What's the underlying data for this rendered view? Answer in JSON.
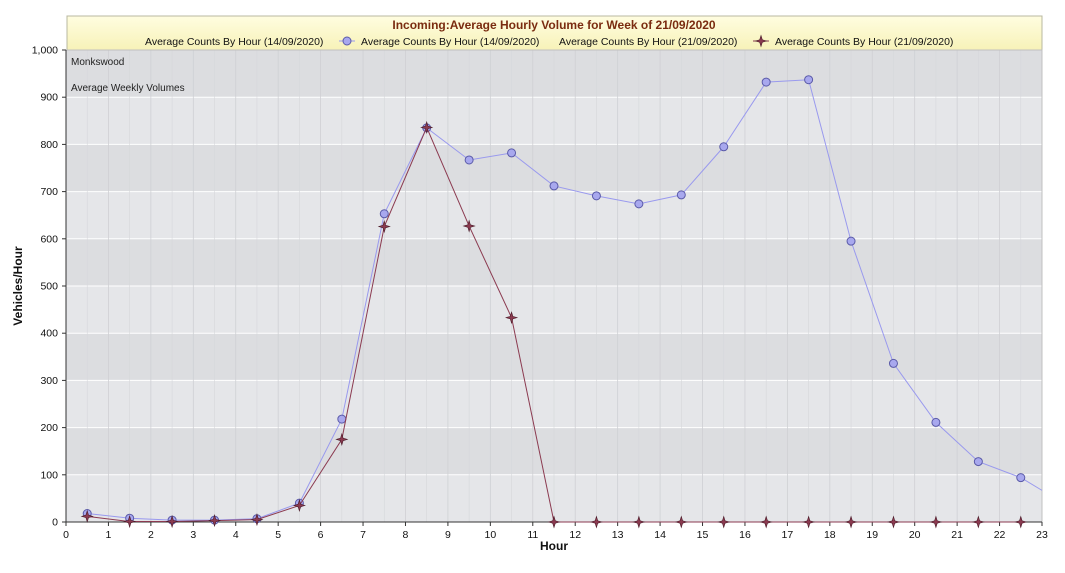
{
  "chart_data": {
    "type": "line",
    "title": "Incoming:Average Hourly Volume for Week of 21/09/2020",
    "xlabel": "Hour",
    "ylabel": "Vehicles/Hour",
    "xlim": [
      0,
      23
    ],
    "ylim": [
      0,
      1000
    ],
    "x_ticks": [
      0,
      1,
      2,
      3,
      4,
      5,
      6,
      7,
      8,
      9,
      10,
      11,
      12,
      13,
      14,
      15,
      16,
      17,
      18,
      19,
      20,
      21,
      22,
      23
    ],
    "y_ticks": [
      0,
      100,
      200,
      300,
      400,
      500,
      600,
      700,
      800,
      900,
      1000
    ],
    "y_tick_labels": [
      "0",
      "100",
      "200",
      "300",
      "400",
      "500",
      "600",
      "700",
      "800",
      "900",
      "1,000"
    ],
    "grid": true,
    "legend_placement": "top",
    "annotations": [
      "Monkswood",
      "Average Weekly Volumes"
    ],
    "legend": [
      {
        "text": "Average Counts By Hour (14/09/2020)",
        "marker": "none"
      },
      {
        "text": "Average Counts By Hour (14/09/2020)",
        "marker": "circle"
      },
      {
        "text": "Average Counts By Hour (21/09/2020)",
        "marker": "none"
      },
      {
        "text": "Average Counts By Hour (21/09/2020)",
        "marker": "star"
      }
    ],
    "series": [
      {
        "name": "Average Counts By Hour (14/09/2020)",
        "color": "#9999ee",
        "marker": "circle",
        "x": [
          0.5,
          1.5,
          2.5,
          3.5,
          4.5,
          5.5,
          6.5,
          7.5,
          8.5,
          9.5,
          10.5,
          11.5,
          12.5,
          13.5,
          14.5,
          15.5,
          16.5,
          17.5,
          18.5,
          19.5,
          20.5,
          21.5,
          22.5,
          23
        ],
        "y": [
          18,
          8,
          4,
          4,
          7,
          40,
          218,
          653,
          835,
          767,
          782,
          712,
          691,
          674,
          693,
          795,
          932,
          937,
          595,
          336,
          211,
          128,
          94,
          67
        ]
      },
      {
        "name": "Average Counts By Hour (21/09/2020)",
        "color": "#8b3a50",
        "marker": "star",
        "x": [
          0.5,
          1.5,
          2.5,
          3.5,
          4.5,
          5.5,
          6.5,
          7.5,
          8.5,
          9.5,
          10.5,
          11.5,
          12.5,
          13.5,
          14.5,
          15.5,
          16.5,
          17.5,
          18.5,
          19.5,
          20.5,
          21.5,
          22.5
        ],
        "y": [
          12,
          1,
          1,
          3,
          5,
          35,
          175,
          626,
          836,
          627,
          433,
          0,
          0,
          0,
          0,
          0,
          0,
          0,
          0,
          0,
          0,
          0,
          0
        ]
      }
    ]
  }
}
